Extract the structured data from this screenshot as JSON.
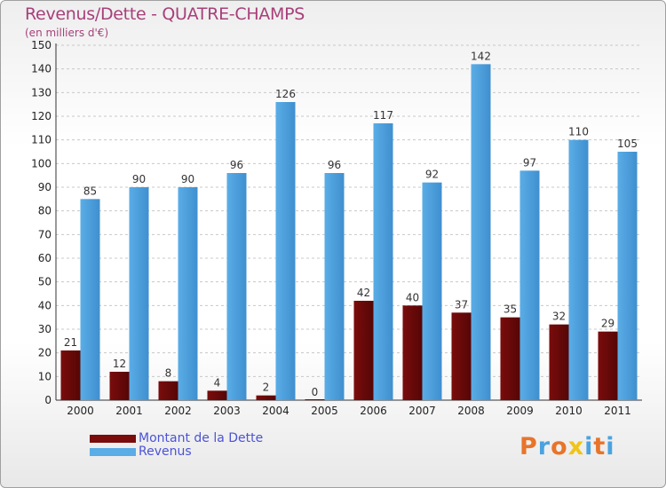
{
  "title": "Revenus/Dette - QUATRE-CHAMPS",
  "subtitle": "(en milliers d'€)",
  "logo": {
    "text": "Proxiti",
    "letters": [
      {
        "ch": "P",
        "color": "#e8742a"
      },
      {
        "ch": "r",
        "color": "#4aa3df"
      },
      {
        "ch": "o",
        "color": "#e8742a"
      },
      {
        "ch": "x",
        "color": "#f0c419"
      },
      {
        "ch": "i",
        "color": "#4aa3df"
      },
      {
        "ch": "t",
        "color": "#e8742a"
      },
      {
        "ch": "i",
        "color": "#4aa3df"
      }
    ]
  },
  "colors": {
    "dette": "#7a0c0c",
    "dette_dark": "#560606",
    "revenus": "#5aade6",
    "revenus_dark": "#3f8fcf",
    "grid": "#c8c8c8",
    "axis": "#333333"
  },
  "chart_data": {
    "type": "bar",
    "title": "Revenus/Dette - QUATRE-CHAMPS",
    "ylabel": "(en milliers d'€)",
    "xlabel": "",
    "categories": [
      "2000",
      "2001",
      "2002",
      "2003",
      "2004",
      "2005",
      "2006",
      "2007",
      "2008",
      "2009",
      "2010",
      "2011"
    ],
    "ylim": [
      0,
      150
    ],
    "yticks": [
      0,
      10,
      20,
      30,
      40,
      50,
      60,
      70,
      80,
      90,
      100,
      110,
      120,
      130,
      140,
      150
    ],
    "grid": true,
    "legend_position": "bottom-left",
    "series": [
      {
        "name": "Montant de la Dette",
        "values": [
          21,
          12,
          8,
          4,
          2,
          0,
          42,
          40,
          37,
          35,
          32,
          29
        ]
      },
      {
        "name": "Revenus",
        "values": [
          85,
          90,
          90,
          96,
          126,
          96,
          117,
          92,
          142,
          97,
          110,
          105
        ]
      }
    ]
  }
}
